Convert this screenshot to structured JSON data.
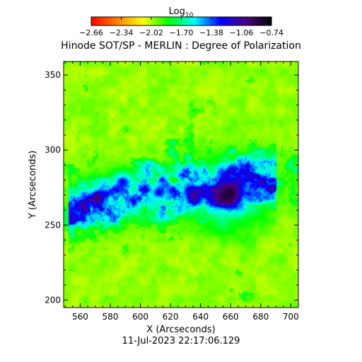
{
  "chart_data": {
    "type": "heatmap",
    "title": "Hinode SOT/SP - MERLIN : Degree of Polarization",
    "timestamp": "11-Jul-2023 22:17:06.129",
    "xlabel": "X (Arcseconds)",
    "ylabel": "Y (Arcseconds)",
    "xlim": [
      549,
      705
    ],
    "ylim": [
      195,
      359
    ],
    "x_ticks": [
      560,
      580,
      600,
      620,
      640,
      660,
      680,
      700
    ],
    "y_ticks": [
      200,
      250,
      300,
      350
    ],
    "colorbar": {
      "label_base": "Log",
      "label_sub": "10",
      "range": [
        -2.66,
        -0.74
      ],
      "tick_labels": [
        "-2.66",
        "-2.34",
        "-2.02",
        "-1.70",
        "-1.38",
        "-1.06",
        "-0.74"
      ],
      "colors": [
        "#ff0000",
        "#ff8000",
        "#ffff00",
        "#00ff00",
        "#00ffff",
        "#0000ff",
        "#4b0082",
        "#000000"
      ]
    },
    "features": [
      {
        "kind": "sunspot",
        "x": 658,
        "y": 270,
        "rx": 12,
        "ry": 11,
        "peak": -0.8
      },
      {
        "kind": "pore",
        "x": 571,
        "y": 268,
        "rx": 6,
        "ry": 6,
        "peak": -0.9
      },
      {
        "kind": "pore",
        "x": 635,
        "y": 270,
        "rx": 5,
        "ry": 6,
        "peak": -1.0
      },
      {
        "kind": "pore",
        "x": 612,
        "y": 272,
        "rx": 5,
        "ry": 4,
        "peak": -1.2
      },
      {
        "kind": "pore",
        "x": 588,
        "y": 279,
        "rx": 5,
        "ry": 4,
        "peak": -1.2
      }
    ]
  }
}
